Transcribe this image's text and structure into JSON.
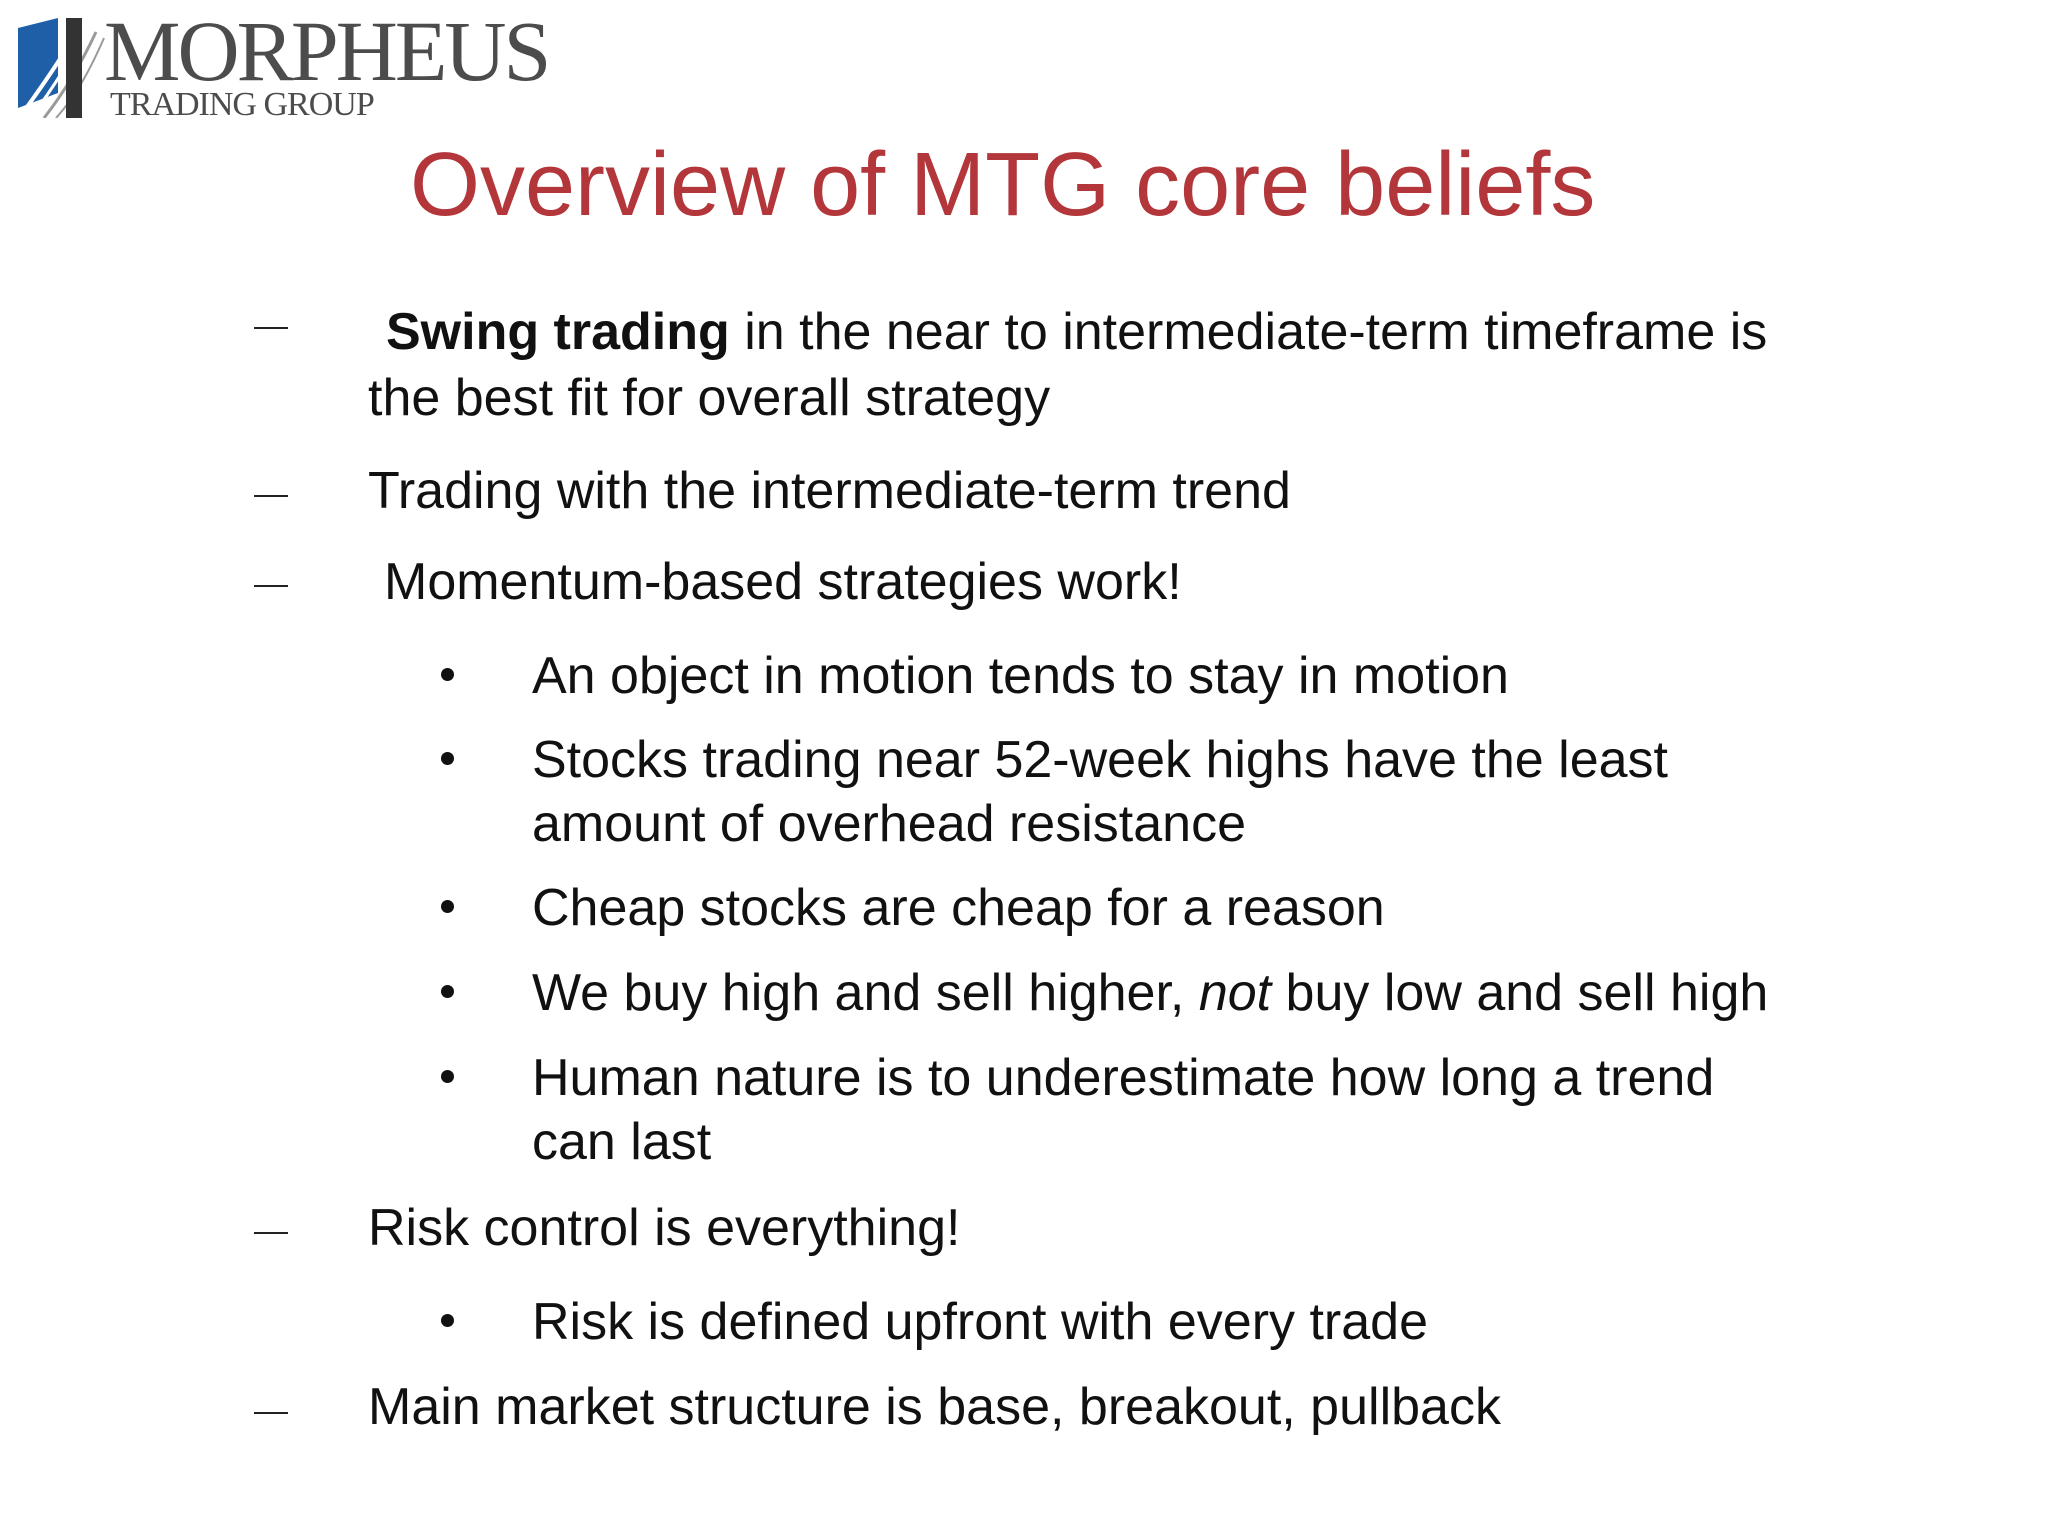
{
  "logo": {
    "name": "MORPHEUS",
    "tagline": "TRADING GROUP",
    "mark_color": "#1f5fa8"
  },
  "slide": {
    "title": "Overview of MTG core beliefs",
    "title_color": "#b3363a"
  },
  "items": {
    "swing_bold": "Swing trading",
    "swing_rest_1": " in the near to intermediate-term timeframe is",
    "swing_rest_2": "the best fit for overall strategy",
    "trend": "Trading with the intermediate-term trend",
    "momentum": "Momentum-based strategies work!",
    "motion": "An object in motion tends to stay in motion",
    "highs_1": "Stocks trading near 52-week highs have the least",
    "highs_2": "amount of overhead resistance",
    "cheap": "Cheap stocks are cheap for a reason",
    "buy_1": "We buy high and sell higher, ",
    "buy_not": "not",
    "buy_2": " buy low and sell high",
    "human_1": "Human nature is to underestimate how long a trend",
    "human_2": "can last",
    "risk": "Risk control is everything!",
    "risk_defined": "Risk is defined upfront with every trade",
    "structure": "Main market structure is base, breakout, pullback"
  }
}
